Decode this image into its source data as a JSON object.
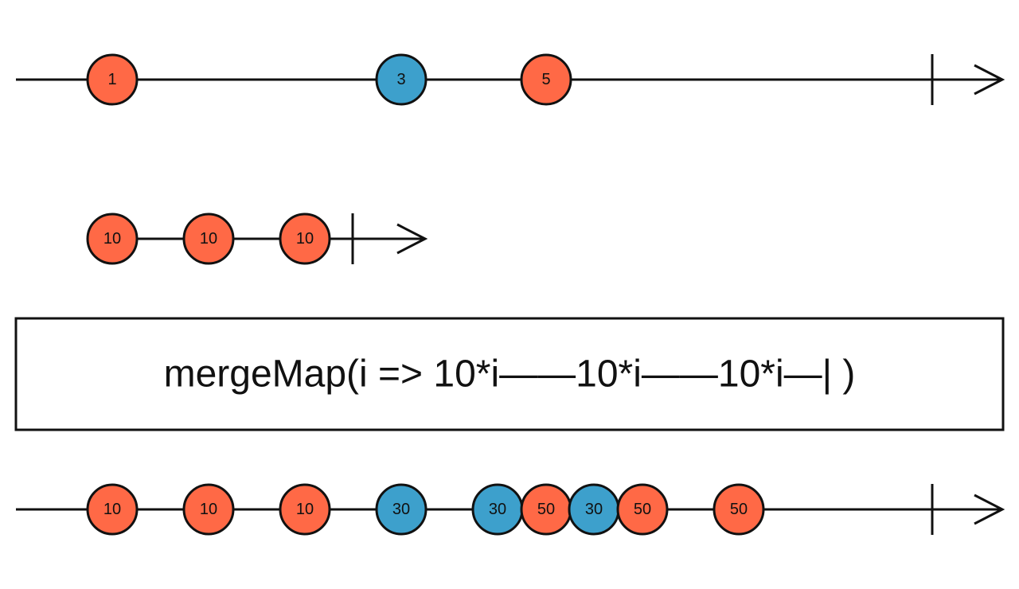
{
  "colors": {
    "orange": "#FF6946",
    "blue": "#3DA0CC",
    "stroke": "#111111"
  },
  "source": {
    "marbles": [
      {
        "label": "1",
        "color": "orange"
      },
      {
        "label": "3",
        "color": "blue"
      },
      {
        "label": "5",
        "color": "orange"
      }
    ],
    "completed": true
  },
  "inner": {
    "marbles": [
      {
        "label": "10",
        "color": "orange"
      },
      {
        "label": "10",
        "color": "orange"
      },
      {
        "label": "10",
        "color": "orange"
      }
    ],
    "completed": true
  },
  "operator": {
    "label": "mergeMap(i => 10*i——10*i——10*i—| )"
  },
  "output": {
    "marbles": [
      {
        "label": "10",
        "color": "orange"
      },
      {
        "label": "10",
        "color": "orange"
      },
      {
        "label": "10",
        "color": "orange"
      },
      {
        "label": "30",
        "color": "blue"
      },
      {
        "label": "30",
        "color": "blue"
      },
      {
        "label": "50",
        "color": "orange"
      },
      {
        "label": "30",
        "color": "blue"
      },
      {
        "label": "50",
        "color": "orange"
      },
      {
        "label": "50",
        "color": "orange"
      }
    ],
    "completed": true
  }
}
